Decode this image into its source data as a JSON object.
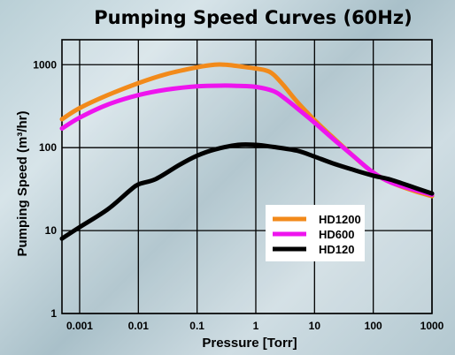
{
  "chart_data": {
    "type": "line",
    "title": "Pumping Speed Curves (60Hz)",
    "xlabel": "Pressure [Torr]",
    "ylabel": "Pumping Speed (m³/hr)",
    "xscale": "log",
    "yscale": "log",
    "xlim": [
      0.0005,
      1000
    ],
    "ylim": [
      1,
      2000
    ],
    "x_ticks": [
      0.001,
      0.01,
      0.1,
      1,
      10,
      100,
      1000
    ],
    "x_tick_labels": [
      "0.001",
      "0.01",
      "0.1",
      "1",
      "10",
      "100",
      "1000"
    ],
    "y_ticks": [
      1,
      10,
      100,
      1000
    ],
    "y_tick_labels": [
      "1",
      "10",
      "100",
      "1000"
    ],
    "grid": true,
    "legend_position": "center-right",
    "series": [
      {
        "name": "HD1200",
        "color": "#f28a1a",
        "x": [
          0.0005,
          0.001,
          0.003,
          0.01,
          0.03,
          0.1,
          0.2,
          0.3,
          0.5,
          1,
          1.5,
          2,
          3,
          5,
          10,
          20,
          50,
          100,
          200,
          500,
          1000
        ],
        "y": [
          220,
          300,
          430,
          600,
          770,
          930,
          1000,
          1000,
          960,
          900,
          850,
          760,
          560,
          360,
          215,
          135,
          75,
          50,
          38,
          30,
          26
        ]
      },
      {
        "name": "HD600",
        "color": "#ee14ee",
        "x": [
          0.0005,
          0.001,
          0.003,
          0.01,
          0.03,
          0.1,
          0.3,
          0.5,
          1,
          2,
          3,
          5,
          10,
          20,
          50,
          100,
          200,
          500,
          1000
        ],
        "y": [
          170,
          230,
          330,
          430,
          500,
          550,
          560,
          555,
          540,
          480,
          400,
          300,
          200,
          130,
          75,
          50,
          38,
          31,
          27
        ]
      },
      {
        "name": "HD120",
        "color": "#000000",
        "x": [
          0.0005,
          0.001,
          0.003,
          0.007,
          0.01,
          0.02,
          0.05,
          0.1,
          0.2,
          0.5,
          1,
          2,
          5,
          10,
          20,
          50,
          100,
          200,
          500,
          1000
        ],
        "y": [
          8,
          11,
          18,
          30,
          36,
          42,
          62,
          80,
          95,
          108,
          108,
          102,
          92,
          78,
          65,
          53,
          46,
          41,
          33,
          28
        ]
      }
    ]
  }
}
